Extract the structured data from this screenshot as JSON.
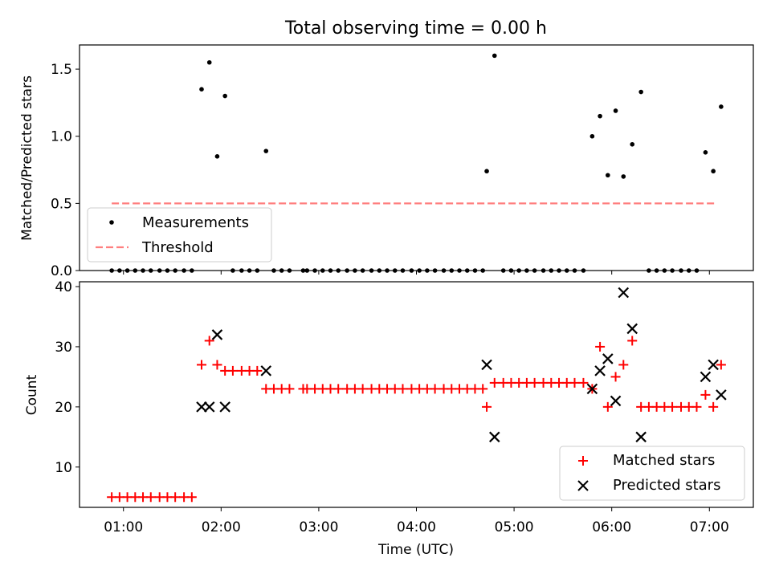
{
  "title": "Total observing time = 0.00 h",
  "chart_data": [
    {
      "type": "scatter",
      "ylabel": "Matched/Predicted stars",
      "ylim": [
        0,
        1.68
      ],
      "xlim": [
        0.55,
        7.45
      ],
      "yticks": [
        0.0,
        0.5,
        1.0,
        1.5
      ],
      "ytick_labels": [
        "0.0",
        "0.5",
        "1.0",
        "1.5"
      ],
      "legend": {
        "location": "lower-left",
        "entries": [
          "Measurements",
          "Threshold"
        ]
      },
      "threshold": {
        "name": "Threshold",
        "value": 0.5,
        "x": [
          0.88,
          7.08
        ],
        "color": "#ff7f7f"
      },
      "series": [
        {
          "name": "Measurements",
          "color": "#000000",
          "points": [
            [
              0.88,
              0
            ],
            [
              0.96,
              0
            ],
            [
              1.04,
              0
            ],
            [
              1.12,
              0
            ],
            [
              1.2,
              0
            ],
            [
              1.28,
              0
            ],
            [
              1.37,
              0
            ],
            [
              1.45,
              0
            ],
            [
              1.53,
              0
            ],
            [
              1.62,
              0
            ],
            [
              1.7,
              0
            ],
            [
              1.8,
              1.35
            ],
            [
              1.88,
              1.55
            ],
            [
              1.96,
              0.85
            ],
            [
              2.04,
              1.3
            ],
            [
              2.12,
              0
            ],
            [
              2.21,
              0
            ],
            [
              2.29,
              0
            ],
            [
              2.37,
              0
            ],
            [
              2.46,
              0.89
            ],
            [
              2.54,
              0
            ],
            [
              2.62,
              0
            ],
            [
              2.7,
              0
            ],
            [
              2.84,
              0
            ],
            [
              2.88,
              0
            ],
            [
              2.96,
              0
            ],
            [
              3.04,
              0
            ],
            [
              3.12,
              0
            ],
            [
              3.2,
              0
            ],
            [
              3.29,
              0
            ],
            [
              3.37,
              0
            ],
            [
              3.45,
              0
            ],
            [
              3.54,
              0
            ],
            [
              3.62,
              0
            ],
            [
              3.7,
              0
            ],
            [
              3.78,
              0
            ],
            [
              3.86,
              0
            ],
            [
              3.95,
              0
            ],
            [
              4.03,
              0
            ],
            [
              4.11,
              0
            ],
            [
              4.19,
              0
            ],
            [
              4.28,
              0
            ],
            [
              4.36,
              0
            ],
            [
              4.44,
              0
            ],
            [
              4.52,
              0
            ],
            [
              4.6,
              0
            ],
            [
              4.68,
              0
            ],
            [
              4.72,
              0.74
            ],
            [
              4.8,
              1.6
            ],
            [
              4.89,
              0
            ],
            [
              4.97,
              0
            ],
            [
              5.05,
              0
            ],
            [
              5.13,
              0
            ],
            [
              5.21,
              0
            ],
            [
              5.3,
              0
            ],
            [
              5.38,
              0
            ],
            [
              5.46,
              0
            ],
            [
              5.54,
              0
            ],
            [
              5.62,
              0
            ],
            [
              5.71,
              0
            ],
            [
              5.8,
              1.0
            ],
            [
              5.88,
              1.15
            ],
            [
              5.96,
              0.71
            ],
            [
              6.04,
              1.19
            ],
            [
              6.12,
              0.7
            ],
            [
              6.21,
              0.94
            ],
            [
              6.3,
              1.33
            ],
            [
              6.38,
              0
            ],
            [
              6.46,
              0
            ],
            [
              6.54,
              0
            ],
            [
              6.62,
              0
            ],
            [
              6.71,
              0
            ],
            [
              6.79,
              0
            ],
            [
              6.87,
              0
            ],
            [
              6.96,
              0.88
            ],
            [
              7.04,
              0.74
            ],
            [
              7.12,
              1.22
            ]
          ]
        }
      ]
    },
    {
      "type": "scatter",
      "xlabel": "Time (UTC)",
      "ylabel": "Count",
      "ylim": [
        3.3,
        40.8
      ],
      "xlim": [
        0.55,
        7.45
      ],
      "yticks": [
        10,
        20,
        30,
        40
      ],
      "ytick_labels": [
        "10",
        "20",
        "30",
        "40"
      ],
      "xticks": [
        1,
        2,
        3,
        4,
        5,
        6,
        7
      ],
      "xtick_labels": [
        "01:00",
        "02:00",
        "03:00",
        "04:00",
        "05:00",
        "06:00",
        "07:00"
      ],
      "legend": {
        "location": "lower-right",
        "entries": [
          "Matched stars",
          "Predicted stars"
        ]
      },
      "series": [
        {
          "name": "Matched stars",
          "marker": "+",
          "color": "#ff0000",
          "points": [
            [
              0.88,
              5
            ],
            [
              0.96,
              5
            ],
            [
              1.04,
              5
            ],
            [
              1.12,
              5
            ],
            [
              1.2,
              5
            ],
            [
              1.28,
              5
            ],
            [
              1.37,
              5
            ],
            [
              1.45,
              5
            ],
            [
              1.53,
              5
            ],
            [
              1.62,
              5
            ],
            [
              1.7,
              5
            ],
            [
              1.8,
              27
            ],
            [
              1.88,
              31
            ],
            [
              1.96,
              27
            ],
            [
              2.04,
              26
            ],
            [
              2.12,
              26
            ],
            [
              2.21,
              26
            ],
            [
              2.29,
              26
            ],
            [
              2.37,
              26
            ],
            [
              2.46,
              23
            ],
            [
              2.54,
              23
            ],
            [
              2.62,
              23
            ],
            [
              2.7,
              23
            ],
            [
              2.84,
              23
            ],
            [
              2.88,
              23
            ],
            [
              2.96,
              23
            ],
            [
              3.04,
              23
            ],
            [
              3.12,
              23
            ],
            [
              3.2,
              23
            ],
            [
              3.29,
              23
            ],
            [
              3.37,
              23
            ],
            [
              3.45,
              23
            ],
            [
              3.54,
              23
            ],
            [
              3.62,
              23
            ],
            [
              3.7,
              23
            ],
            [
              3.78,
              23
            ],
            [
              3.86,
              23
            ],
            [
              3.95,
              23
            ],
            [
              4.03,
              23
            ],
            [
              4.11,
              23
            ],
            [
              4.19,
              23
            ],
            [
              4.28,
              23
            ],
            [
              4.36,
              23
            ],
            [
              4.44,
              23
            ],
            [
              4.52,
              23
            ],
            [
              4.6,
              23
            ],
            [
              4.68,
              23
            ],
            [
              4.72,
              20
            ],
            [
              4.8,
              24
            ],
            [
              4.89,
              24
            ],
            [
              4.97,
              24
            ],
            [
              5.05,
              24
            ],
            [
              5.13,
              24
            ],
            [
              5.21,
              24
            ],
            [
              5.3,
              24
            ],
            [
              5.38,
              24
            ],
            [
              5.46,
              24
            ],
            [
              5.54,
              24
            ],
            [
              5.62,
              24
            ],
            [
              5.71,
              24
            ],
            [
              5.8,
              23
            ],
            [
              5.88,
              30
            ],
            [
              5.96,
              20
            ],
            [
              6.04,
              25
            ],
            [
              6.12,
              27
            ],
            [
              6.21,
              31
            ],
            [
              6.3,
              20
            ],
            [
              6.38,
              20
            ],
            [
              6.46,
              20
            ],
            [
              6.54,
              20
            ],
            [
              6.62,
              20
            ],
            [
              6.71,
              20
            ],
            [
              6.79,
              20
            ],
            [
              6.87,
              20
            ],
            [
              6.96,
              22
            ],
            [
              7.04,
              20
            ],
            [
              7.12,
              27
            ]
          ]
        },
        {
          "name": "Predicted stars",
          "marker": "x",
          "color": "#000000",
          "points": [
            [
              1.8,
              20
            ],
            [
              1.88,
              20
            ],
            [
              1.96,
              32
            ],
            [
              2.04,
              20
            ],
            [
              2.46,
              26
            ],
            [
              4.72,
              27
            ],
            [
              4.8,
              15
            ],
            [
              5.8,
              23
            ],
            [
              5.88,
              26
            ],
            [
              5.96,
              28
            ],
            [
              6.04,
              21
            ],
            [
              6.12,
              39
            ],
            [
              6.21,
              33
            ],
            [
              6.3,
              15
            ],
            [
              6.96,
              25
            ],
            [
              7.04,
              27
            ],
            [
              7.12,
              22
            ]
          ]
        }
      ]
    }
  ]
}
